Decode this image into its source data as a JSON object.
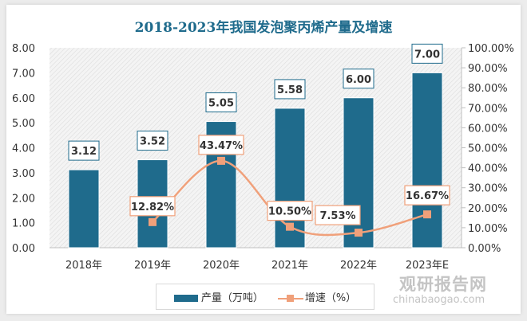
{
  "chart_data": {
    "type": "bar+line",
    "title": "2018-2023年我国发泡聚丙烯产量及增速",
    "categories": [
      "2018年",
      "2019年",
      "2020年",
      "2021年",
      "2022年",
      "2023年E"
    ],
    "series": [
      {
        "name": "产量（万吨）",
        "type": "bar",
        "axis": "left",
        "values": [
          3.12,
          3.52,
          5.05,
          5.58,
          6.0,
          7.0
        ],
        "labels": [
          "3.12",
          "3.52",
          "5.05",
          "5.58",
          "6.00",
          "7.00"
        ],
        "color": "#1f6b8c"
      },
      {
        "name": "增速（%）",
        "type": "line",
        "axis": "right",
        "values": [
          null,
          12.82,
          43.47,
          10.5,
          7.53,
          16.67
        ],
        "labels": [
          "",
          "12.82%",
          "43.47%",
          "10.50%",
          "7.53%",
          "16.67%"
        ],
        "color": "#f0a07a"
      }
    ],
    "ylim": [
      0,
      8
    ],
    "y2lim": [
      0,
      100
    ],
    "yticks": [
      "0.00",
      "1.00",
      "2.00",
      "3.00",
      "4.00",
      "5.00",
      "6.00",
      "7.00",
      "8.00"
    ],
    "y2ticks": [
      "0.00%",
      "10.00%",
      "20.00%",
      "30.00%",
      "40.00%",
      "50.00%",
      "60.00%",
      "70.00%",
      "80.00%",
      "90.00%",
      "100.00%"
    ],
    "legend": "bottom"
  },
  "watermark": {
    "cn": "观研报告网",
    "en": "chinabaogao.com"
  }
}
